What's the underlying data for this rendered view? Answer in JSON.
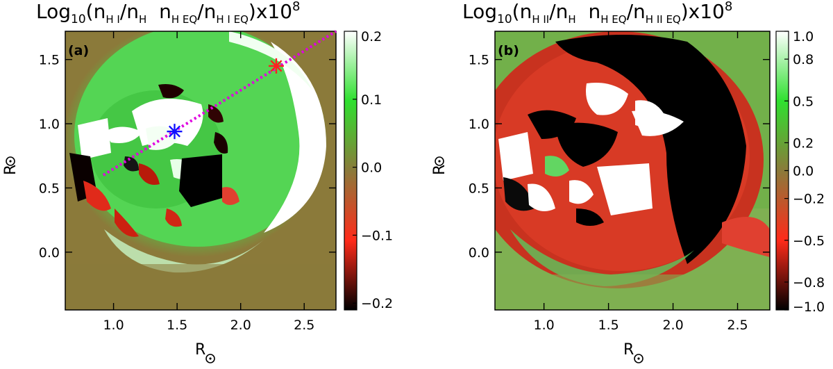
{
  "chart_data": [
    {
      "type": "heatmap",
      "panel_label": "(a)",
      "title_parts": {
        "base": "Log",
        "base_sub": "10",
        "open": "(n",
        "num_sub": "H I",
        "slash1": "/n",
        "den_sub": "H",
        "mid": "  n",
        "eq_sub": "H EQ",
        "slash2": "/n",
        "eq2_sub": "H I EQ",
        "close": ")x10",
        "exp": "8"
      },
      "xlabel": "R",
      "ylabel": "R",
      "xlim": [
        0.62,
        2.75
      ],
      "ylim": [
        -0.45,
        1.72
      ],
      "x_ticks": [
        1.0,
        1.5,
        2.0,
        2.5
      ],
      "x_tick_labels": [
        "1.0",
        "1.5",
        "2.0",
        "2.5"
      ],
      "y_ticks": [
        0.0,
        0.5,
        1.0,
        1.5
      ],
      "y_tick_labels": [
        "0.0",
        "0.5",
        "1.0",
        "1.5"
      ],
      "colorbar": {
        "range": [
          -0.21,
          0.2
        ],
        "ticks": [
          0.2,
          0.1,
          0.0,
          -0.1,
          -0.2
        ],
        "tick_labels": [
          "0.2",
          "0.1",
          "0.0",
          "−0.1",
          "−0.2"
        ]
      },
      "line": {
        "x": [
          0.92,
          2.75
        ],
        "y": [
          0.6,
          1.72
        ],
        "color": "#e000e0",
        "style": "dotted"
      },
      "markers": [
        {
          "x": 1.48,
          "y": 0.94,
          "color": "#1010ff",
          "symbol": "asterisk"
        },
        {
          "x": 2.28,
          "y": 1.45,
          "color": "#ff2020",
          "symbol": "asterisk"
        }
      ]
    },
    {
      "type": "heatmap",
      "panel_label": "(b)",
      "title_parts": {
        "base": "Log",
        "base_sub": "10",
        "open": "(n",
        "num_sub": "H II",
        "slash1": "/n",
        "den_sub": "H",
        "mid": "  n",
        "eq_sub": "H EQ",
        "slash2": "/n",
        "eq2_sub": "H II EQ",
        "close": ")x10",
        "exp": "8"
      },
      "xlabel": "R",
      "ylabel": "R",
      "xlim": [
        0.62,
        2.75
      ],
      "ylim": [
        -0.45,
        1.72
      ],
      "x_ticks": [
        1.0,
        1.5,
        2.0,
        2.5
      ],
      "x_tick_labels": [
        "1.0",
        "1.5",
        "2.0",
        "2.5"
      ],
      "y_ticks": [
        0.0,
        0.5,
        1.0,
        1.5
      ],
      "y_tick_labels": [
        "0.0",
        "0.5",
        "1.0",
        "1.5"
      ],
      "colorbar": {
        "range": [
          -1.0,
          1.0
        ],
        "ticks": [
          1.0,
          0.8,
          0.5,
          0.2,
          0.0,
          -0.2,
          -0.5,
          -0.8,
          -1.0
        ],
        "tick_labels": [
          "1.0",
          "0.8",
          "0.5",
          "0.2",
          "0.0",
          "−0.2",
          "−0.5",
          "−0.8",
          "−1.0"
        ]
      }
    }
  ],
  "colors": {
    "background_field": "#8b7a3a",
    "green": "#3ecc3e",
    "bright_green": "#9cf59c",
    "white": "#ffffff",
    "red": "#e02a1a",
    "black": "#000000"
  }
}
